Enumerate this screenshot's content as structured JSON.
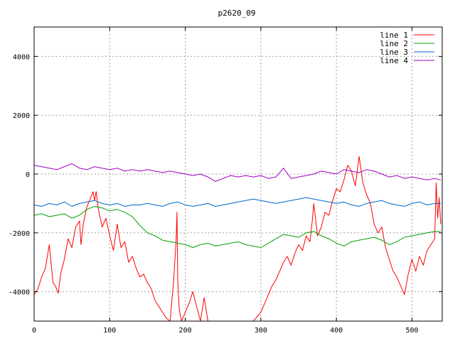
{
  "chart_data": {
    "type": "line",
    "title": "p2620_09",
    "xlabel": "",
    "ylabel": "",
    "xlim": [
      0,
      540
    ],
    "ylim": [
      -5000,
      5000
    ],
    "x_ticks": [
      0,
      100,
      200,
      300,
      400,
      500
    ],
    "y_ticks": [
      -4000,
      -2000,
      0,
      2000,
      4000
    ],
    "grid": true,
    "legend_position": "top-right",
    "series": [
      {
        "name": "line 1",
        "color": "#ff0000",
        "x": [
          0,
          5,
          10,
          15,
          20,
          25,
          28,
          32,
          35,
          40,
          45,
          50,
          55,
          60,
          62,
          65,
          70,
          75,
          78,
          80,
          82,
          85,
          90,
          95,
          100,
          105,
          110,
          115,
          120,
          125,
          130,
          135,
          140,
          145,
          150,
          155,
          160,
          165,
          170,
          175,
          180,
          185,
          188,
          189,
          190,
          192,
          195,
          200,
          205,
          210,
          215,
          220,
          225,
          230,
          240,
          290,
          300,
          305,
          310,
          315,
          320,
          325,
          330,
          335,
          340,
          345,
          350,
          355,
          360,
          365,
          368,
          370,
          375,
          380,
          385,
          390,
          395,
          400,
          405,
          410,
          415,
          420,
          425,
          430,
          435,
          440,
          445,
          450,
          455,
          460,
          465,
          470,
          475,
          480,
          485,
          490,
          495,
          500,
          505,
          510,
          515,
          520,
          525,
          530,
          532,
          534,
          536,
          538
        ],
        "values": [
          -4100,
          -3900,
          -3500,
          -3200,
          -2400,
          -3700,
          -3800,
          -4050,
          -3400,
          -2900,
          -2200,
          -2500,
          -1800,
          -1600,
          -2400,
          -1700,
          -1100,
          -800,
          -600,
          -900,
          -600,
          -1200,
          -1800,
          -1500,
          -2100,
          -2600,
          -1700,
          -2500,
          -2300,
          -3000,
          -2800,
          -3200,
          -3500,
          -3400,
          -3700,
          -3900,
          -4300,
          -4500,
          -4700,
          -4900,
          -5000,
          -3500,
          -2200,
          -1300,
          -3600,
          -4600,
          -5000,
          -4700,
          -4400,
          -4000,
          -4500,
          -5000,
          -4200,
          -5000,
          -5000,
          -5000,
          -4700,
          -4400,
          -4100,
          -3800,
          -3600,
          -3300,
          -3000,
          -2800,
          -3100,
          -2700,
          -2400,
          -2600,
          -2100,
          -2300,
          -1600,
          -1000,
          -2100,
          -1800,
          -1300,
          -1400,
          -900,
          -500,
          -600,
          -200,
          300,
          100,
          -400,
          600,
          -300,
          -700,
          -1000,
          -1700,
          -2000,
          -1800,
          -2500,
          -2900,
          -3300,
          -3500,
          -3800,
          -4100,
          -3400,
          -2900,
          -3300,
          -2800,
          -3100,
          -2600,
          -2400,
          -2200,
          -300,
          -1500,
          -800,
          -1700
        ]
      },
      {
        "name": "line 2",
        "color": "#00a000",
        "x": [
          0,
          10,
          20,
          30,
          40,
          50,
          60,
          70,
          80,
          90,
          100,
          110,
          120,
          130,
          140,
          150,
          160,
          170,
          180,
          190,
          200,
          210,
          220,
          230,
          240,
          250,
          260,
          270,
          280,
          290,
          300,
          310,
          320,
          330,
          340,
          350,
          360,
          370,
          380,
          390,
          400,
          410,
          420,
          430,
          440,
          450,
          460,
          470,
          480,
          490,
          500,
          510,
          520,
          530,
          538
        ],
        "values": [
          -1400,
          -1350,
          -1450,
          -1400,
          -1350,
          -1500,
          -1400,
          -1200,
          -1100,
          -1150,
          -1250,
          -1200,
          -1300,
          -1450,
          -1750,
          -2000,
          -2100,
          -2250,
          -2300,
          -2350,
          -2400,
          -2500,
          -2400,
          -2350,
          -2450,
          -2400,
          -2350,
          -2300,
          -2400,
          -2450,
          -2500,
          -2350,
          -2200,
          -2050,
          -2100,
          -2150,
          -2000,
          -1950,
          -2100,
          -2200,
          -2350,
          -2450,
          -2300,
          -2250,
          -2200,
          -2150,
          -2250,
          -2400,
          -2300,
          -2150,
          -2100,
          -2050,
          -2000,
          -1950,
          -1950
        ]
      },
      {
        "name": "line 3",
        "color": "#0066cc",
        "x": [
          0,
          10,
          20,
          30,
          40,
          50,
          60,
          70,
          80,
          90,
          100,
          110,
          120,
          130,
          140,
          150,
          160,
          170,
          180,
          190,
          200,
          210,
          220,
          230,
          240,
          250,
          260,
          270,
          280,
          290,
          300,
          310,
          320,
          330,
          340,
          350,
          360,
          370,
          380,
          390,
          400,
          410,
          420,
          430,
          440,
          450,
          460,
          470,
          480,
          490,
          500,
          510,
          520,
          530,
          538
        ],
        "values": [
          -1050,
          -1100,
          -1000,
          -1050,
          -950,
          -1100,
          -1000,
          -950,
          -900,
          -1000,
          -1050,
          -1000,
          -1100,
          -1050,
          -1050,
          -1000,
          -1050,
          -1100,
          -1000,
          -950,
          -1050,
          -1100,
          -1050,
          -1000,
          -1100,
          -1050,
          -1000,
          -950,
          -900,
          -850,
          -900,
          -950,
          -1000,
          -950,
          -900,
          -850,
          -800,
          -850,
          -900,
          -950,
          -1000,
          -950,
          -1050,
          -1100,
          -1000,
          -950,
          -900,
          -1000,
          -1050,
          -1100,
          -1000,
          -950,
          -1050,
          -1000,
          -1000
        ]
      },
      {
        "name": "line 4",
        "color": "#a000c0",
        "x": [
          0,
          10,
          20,
          30,
          40,
          50,
          60,
          70,
          80,
          90,
          100,
          110,
          120,
          130,
          140,
          150,
          160,
          170,
          180,
          190,
          200,
          210,
          220,
          230,
          240,
          250,
          260,
          270,
          280,
          290,
          300,
          310,
          320,
          330,
          340,
          350,
          360,
          370,
          380,
          390,
          400,
          410,
          420,
          430,
          440,
          450,
          460,
          470,
          480,
          490,
          500,
          510,
          520,
          530,
          538
        ],
        "values": [
          300,
          250,
          200,
          150,
          250,
          350,
          200,
          150,
          250,
          200,
          150,
          200,
          100,
          150,
          100,
          150,
          100,
          50,
          100,
          50,
          0,
          -50,
          0,
          -100,
          -250,
          -150,
          -50,
          -100,
          -50,
          -100,
          -50,
          -150,
          -100,
          200,
          -150,
          -100,
          -50,
          0,
          100,
          50,
          0,
          150,
          100,
          50,
          150,
          100,
          0,
          -100,
          -50,
          -150,
          -100,
          -150,
          -200,
          -150,
          -200
        ]
      }
    ]
  }
}
